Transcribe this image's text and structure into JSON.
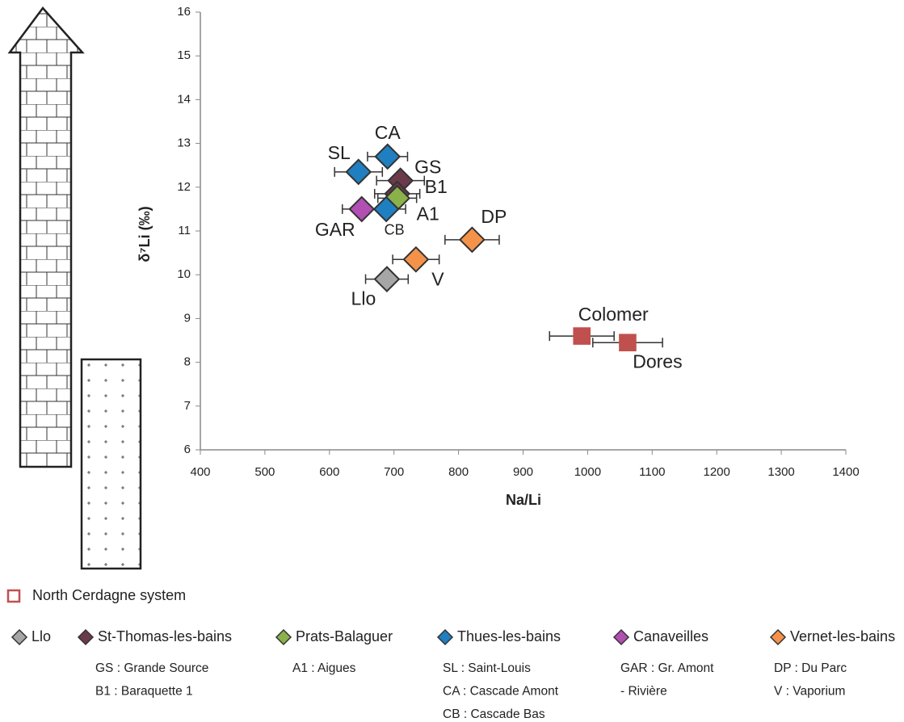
{
  "chart_data": {
    "type": "scatter",
    "x_label": "Na/Li",
    "y_label": "δ⁷Li (‰)",
    "xlim": [
      400,
      1400
    ],
    "ylim": [
      6,
      16
    ],
    "xticks": [
      400,
      500,
      600,
      700,
      800,
      900,
      1000,
      1100,
      1200,
      1300,
      1400
    ],
    "yticks": [
      6,
      7,
      8,
      9,
      10,
      11,
      12,
      13,
      14,
      15,
      16
    ],
    "grid": false,
    "series": [
      {
        "name": "North Cerdagne system",
        "marker": "square",
        "color": "#c0504d",
        "label_color": "#c0504d",
        "x": [
          991,
          1062
        ],
        "xerr": [
          50,
          54
        ],
        "values": [
          8.6,
          8.45
        ],
        "point_labels": [
          "Colomer",
          "Dores"
        ],
        "descriptions": []
      },
      {
        "name": "Llo",
        "marker": "diamond",
        "color": "#a6a6a6",
        "label_color": "#000000",
        "x": [
          689
        ],
        "xerr": [
          33
        ],
        "values": [
          9.9
        ],
        "point_labels": [
          "Llo"
        ],
        "descriptions": []
      },
      {
        "name": "St-Thomas-les-bains",
        "marker": "diamond",
        "color": "#6b3a4b",
        "label_color": "#8a4a62",
        "x": [
          710,
          705
        ],
        "xerr": [
          37,
          35
        ],
        "values": [
          12.15,
          11.85
        ],
        "point_labels": [
          "GS",
          "B1"
        ],
        "descriptions": [
          "GS : Grande Source",
          "B1 : Baraquette 1"
        ]
      },
      {
        "name": "Prats-Balaguer",
        "marker": "diamond",
        "color": "#8bb14a",
        "label_color": "#8bb14a",
        "x": [
          705
        ],
        "xerr": [
          30
        ],
        "values": [
          11.75
        ],
        "point_labels": [
          "A1"
        ],
        "descriptions": [
          "A1 : Aigues"
        ]
      },
      {
        "name": "Thues-les-bains",
        "marker": "diamond",
        "color": "#1f7fc0",
        "label_color": "#1f7fc0",
        "x": [
          645,
          690,
          688
        ],
        "xerr": [
          37,
          31,
          30
        ],
        "values": [
          12.35,
          12.7,
          11.5
        ],
        "point_labels": [
          "SL",
          "CA",
          "CB"
        ],
        "descriptions": [
          "SL : Saint-Louis",
          "CA : Cascade Amont",
          "CB : Cascade Bas"
        ]
      },
      {
        "name": "Canaveilles",
        "marker": "diamond",
        "color": "#b24fb2",
        "label_color": "#b24fb2",
        "x": [
          650
        ],
        "xerr": [
          30
        ],
        "values": [
          11.5
        ],
        "point_labels": [
          "GAR"
        ],
        "descriptions": [
          "GAR : Gr. Amont",
          "- Rivière"
        ]
      },
      {
        "name": "Vernet-les-bains",
        "marker": "diamond",
        "color": "#f5924a",
        "label_color": "#f5924a",
        "x": [
          821,
          734
        ],
        "xerr": [
          42,
          36
        ],
        "values": [
          10.8,
          10.35
        ],
        "point_labels": [
          "DP",
          "V"
        ],
        "descriptions": [
          "DP : Du Parc",
          "V : Vaporium"
        ]
      }
    ]
  }
}
